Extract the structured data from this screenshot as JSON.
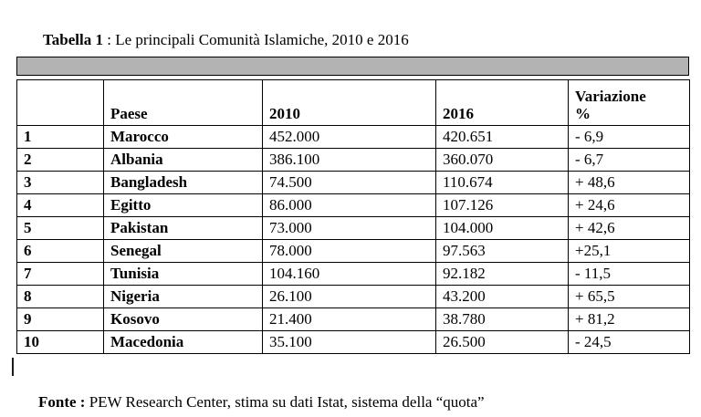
{
  "title": {
    "prefix": "Tabella 1",
    "rest": " : Le principali Comunità Islamiche, 2010 e 2016"
  },
  "table": {
    "headers": {
      "rank": "",
      "paese": "Paese",
      "y2010": "2010",
      "y2016": "2016",
      "variazione_line1": "Variazione",
      "variazione_line2": "%"
    },
    "rows": [
      {
        "rank": "1",
        "paese": "Marocco",
        "v2010": "452.000",
        "v2016": "420.651",
        "variazione": "- 6,9"
      },
      {
        "rank": "2",
        "paese": "Albania",
        "v2010": "386.100",
        "v2016": "360.070",
        "variazione": "- 6,7"
      },
      {
        "rank": "3",
        "paese": "Bangladesh",
        "v2010": "74.500",
        "v2016": "110.674",
        "variazione": "+ 48,6"
      },
      {
        "rank": "4",
        "paese": "Egitto",
        "v2010": "86.000",
        "v2016": "107.126",
        "variazione": "+ 24,6"
      },
      {
        "rank": "5",
        "paese": "Pakistan",
        "v2010": "73.000",
        "v2016": "104.000",
        "variazione": "+ 42,6"
      },
      {
        "rank": "6",
        "paese": "Senegal",
        "v2010": "78.000",
        "v2016": "97.563",
        "variazione": "+25,1"
      },
      {
        "rank": "7",
        "paese": "Tunisia",
        "v2010": "104.160",
        "v2016": "92.182",
        "variazione": "- 11,5"
      },
      {
        "rank": "8",
        "paese": "Nigeria",
        "v2010": "26.100",
        "v2016": "43.200",
        "variazione": "+ 65,5"
      },
      {
        "rank": "9",
        "paese": "Kosovo",
        "v2010": "21.400",
        "v2016": "38.780",
        "variazione": "+ 81,2"
      },
      {
        "rank": "10",
        "paese": "Macedonia",
        "v2010": "35.100",
        "v2016": "26.500",
        "variazione": "- 24,5"
      }
    ]
  },
  "footer": {
    "prefix": "Fonte :",
    "rest": " PEW Research Center, stima su dati Istat, sistema della “quota”"
  },
  "colors": {
    "header_bar": "#b3b3b3",
    "border": "#000000",
    "background": "#ffffff",
    "text": "#000000"
  }
}
